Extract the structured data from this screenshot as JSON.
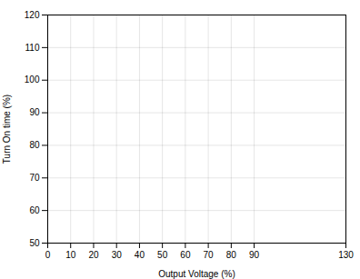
{
  "chart_data": {
    "type": "line",
    "xlabel": "Output Voltage (%)",
    "ylabel": "Turn On time (%)",
    "xlim": [
      0,
      130
    ],
    "ylim": [
      50,
      120
    ],
    "xticks": [
      0,
      10,
      20,
      30,
      40,
      50,
      60,
      70,
      80,
      90,
      130
    ],
    "yticks": [
      50,
      60,
      70,
      80,
      90,
      100,
      110,
      120
    ],
    "grid": true
  }
}
